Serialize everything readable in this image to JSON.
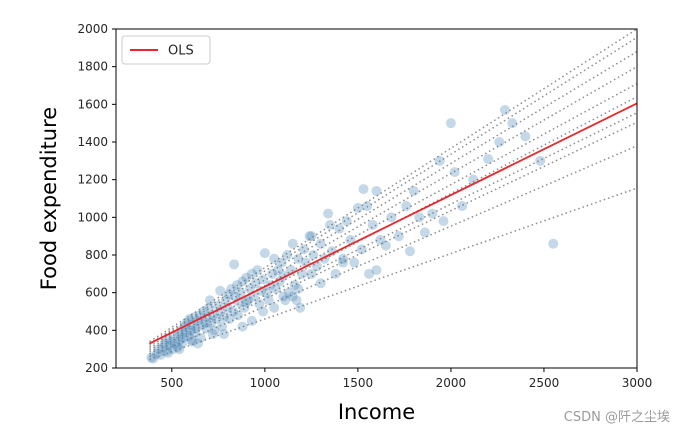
{
  "chart_data": {
    "type": "scatter",
    "xlabel": "Income",
    "ylabel": "Food expenditure",
    "xlim": [
      200,
      3000
    ],
    "ylim": [
      200,
      2000
    ],
    "xticks": [
      500,
      1000,
      1500,
      2000,
      2500,
      3000
    ],
    "yticks": [
      200,
      400,
      600,
      800,
      1000,
      1200,
      1400,
      1600,
      1800,
      2000
    ],
    "grid": false,
    "legend": {
      "placement": "top-left",
      "entries": [
        "OLS"
      ]
    },
    "colors": {
      "ols": "#e8282b",
      "points": "#4a86b5",
      "quantile": "#8c8c8c",
      "frame": "#000000"
    },
    "ols_line": {
      "x": [
        380,
        3000
      ],
      "y": [
        330,
        1605
      ]
    },
    "quantile_lines": [
      {
        "x": [
          380,
          3000
        ],
        "y": [
          245,
          1155
        ]
      },
      {
        "x": [
          380,
          3000
        ],
        "y": [
          262,
          1380
        ]
      },
      {
        "x": [
          380,
          3000
        ],
        "y": [
          275,
          1505
        ]
      },
      {
        "x": [
          380,
          3000
        ],
        "y": [
          285,
          1555
        ]
      },
      {
        "x": [
          380,
          3000
        ],
        "y": [
          295,
          1640
        ]
      },
      {
        "x": [
          380,
          3000
        ],
        "y": [
          305,
          1710
        ]
      },
      {
        "x": [
          380,
          3000
        ],
        "y": [
          315,
          1800
        ]
      },
      {
        "x": [
          380,
          3000
        ],
        "y": [
          325,
          1880
        ]
      },
      {
        "x": [
          380,
          3000
        ],
        "y": [
          330,
          1955
        ]
      },
      {
        "x": [
          380,
          3000
        ],
        "y": [
          340,
          2000
        ]
      }
    ],
    "points": [
      [
        390,
        255
      ],
      [
        400,
        250
      ],
      [
        420,
        275
      ],
      [
        430,
        300
      ],
      [
        440,
        270
      ],
      [
        455,
        310
      ],
      [
        460,
        330
      ],
      [
        470,
        290
      ],
      [
        475,
        355
      ],
      [
        480,
        280
      ],
      [
        490,
        320
      ],
      [
        500,
        340
      ],
      [
        505,
        300
      ],
      [
        510,
        370
      ],
      [
        520,
        330
      ],
      [
        530,
        310
      ],
      [
        540,
        380
      ],
      [
        545,
        350
      ],
      [
        550,
        400
      ],
      [
        555,
        330
      ],
      [
        560,
        360
      ],
      [
        570,
        420
      ],
      [
        575,
        390
      ],
      [
        580,
        440
      ],
      [
        590,
        370
      ],
      [
        595,
        460
      ],
      [
        600,
        400
      ],
      [
        605,
        350
      ],
      [
        610,
        430
      ],
      [
        620,
        470
      ],
      [
        625,
        390
      ],
      [
        630,
        410
      ],
      [
        640,
        450
      ],
      [
        650,
        480
      ],
      [
        655,
        360
      ],
      [
        660,
        430
      ],
      [
        670,
        500
      ],
      [
        680,
        440
      ],
      [
        685,
        410
      ],
      [
        690,
        470
      ],
      [
        700,
        520
      ],
      [
        705,
        560
      ],
      [
        710,
        440
      ],
      [
        720,
        480
      ],
      [
        730,
        400
      ],
      [
        740,
        460
      ],
      [
        750,
        530
      ],
      [
        760,
        500
      ],
      [
        770,
        420
      ],
      [
        780,
        470
      ],
      [
        790,
        560
      ],
      [
        800,
        520
      ],
      [
        805,
        590
      ],
      [
        810,
        460
      ],
      [
        820,
        620
      ],
      [
        830,
        500
      ],
      [
        835,
        750
      ],
      [
        840,
        580
      ],
      [
        850,
        640
      ],
      [
        855,
        480
      ],
      [
        860,
        550
      ],
      [
        870,
        600
      ],
      [
        880,
        660
      ],
      [
        890,
        520
      ],
      [
        900,
        680
      ],
      [
        910,
        560
      ],
      [
        920,
        620
      ],
      [
        930,
        700
      ],
      [
        940,
        580
      ],
      [
        950,
        650
      ],
      [
        960,
        720
      ],
      [
        970,
        540
      ],
      [
        980,
        610
      ],
      [
        990,
        670
      ],
      [
        1000,
        810
      ],
      [
        1010,
        600
      ],
      [
        1020,
        560
      ],
      [
        1030,
        640
      ],
      [
        1040,
        700
      ],
      [
        1050,
        780
      ],
      [
        1060,
        620
      ],
      [
        1070,
        720
      ],
      [
        1080,
        660
      ],
      [
        1090,
        760
      ],
      [
        1100,
        690
      ],
      [
        1110,
        560
      ],
      [
        1120,
        800
      ],
      [
        1130,
        600
      ],
      [
        1140,
        720
      ],
      [
        1150,
        860
      ],
      [
        1160,
        640
      ],
      [
        1170,
        560
      ],
      [
        1180,
        780
      ],
      [
        1190,
        520
      ],
      [
        1200,
        700
      ],
      [
        1210,
        830
      ],
      [
        1220,
        760
      ],
      [
        1240,
        900
      ],
      [
        1250,
        700
      ],
      [
        1260,
        800
      ],
      [
        1280,
        740
      ],
      [
        1300,
        860
      ],
      [
        1320,
        780
      ],
      [
        1340,
        1020
      ],
      [
        1360,
        820
      ],
      [
        1380,
        700
      ],
      [
        1400,
        940
      ],
      [
        1420,
        760
      ],
      [
        1440,
        980
      ],
      [
        1460,
        880
      ],
      [
        1480,
        760
      ],
      [
        1500,
        1050
      ],
      [
        1520,
        830
      ],
      [
        1530,
        1150
      ],
      [
        1550,
        1060
      ],
      [
        1560,
        700
      ],
      [
        1580,
        960
      ],
      [
        1600,
        1140
      ],
      [
        1620,
        880
      ],
      [
        1650,
        850
      ],
      [
        1680,
        1000
      ],
      [
        1720,
        900
      ],
      [
        1760,
        1060
      ],
      [
        1780,
        820
      ],
      [
        1800,
        1140
      ],
      [
        1830,
        1000
      ],
      [
        1860,
        920
      ],
      [
        1900,
        1020
      ],
      [
        1940,
        1300
      ],
      [
        1960,
        980
      ],
      [
        2000,
        1500
      ],
      [
        2020,
        1240
      ],
      [
        2060,
        1060
      ],
      [
        2120,
        1200
      ],
      [
        2200,
        1310
      ],
      [
        2260,
        1400
      ],
      [
        2290,
        1570
      ],
      [
        2330,
        1500
      ],
      [
        2400,
        1430
      ],
      [
        2480,
        1300
      ],
      [
        2550,
        860
      ],
      [
        780,
        380
      ],
      [
        880,
        420
      ],
      [
        990,
        500
      ],
      [
        1100,
        580
      ],
      [
        640,
        330
      ],
      [
        720,
        380
      ],
      [
        930,
        450
      ],
      [
        1180,
        620
      ],
      [
        1300,
        650
      ],
      [
        1420,
        780
      ],
      [
        1600,
        720
      ],
      [
        540,
        300
      ],
      [
        610,
        340
      ],
      [
        760,
        610
      ],
      [
        900,
        550
      ],
      [
        1050,
        520
      ],
      [
        1150,
        580
      ],
      [
        1250,
        900
      ],
      [
        1350,
        960
      ]
    ]
  },
  "watermark": "CSDN @阡之尘埃"
}
